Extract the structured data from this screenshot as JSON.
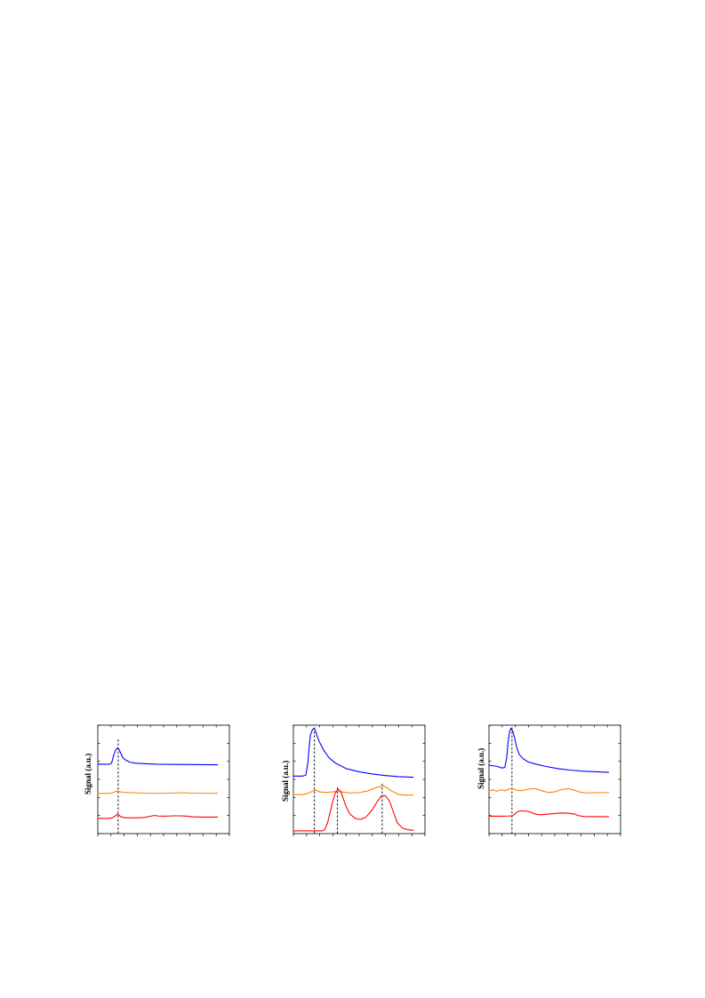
{
  "colors": {
    "blue": "#0000ff",
    "orange": "#ff8000",
    "red": "#ff0000",
    "axes": "#000000",
    "guide": "#000000"
  },
  "chart_data": [
    {
      "type": "line",
      "title": "",
      "xlabel": "",
      "ylabel": "Signal (a.u.)",
      "xlim": [
        0,
        10
      ],
      "ylim": [
        0,
        10
      ],
      "grid": false,
      "tick_labels_shown": false,
      "xtick_count": 10,
      "ytick_count": 6,
      "vlines": [
        {
          "x": 1.55,
          "y_top": 8.7
        }
      ],
      "series": [
        {
          "color": "blue",
          "x": [
            0,
            0.9,
            1.05,
            1.2,
            1.35,
            1.5,
            1.6,
            1.75,
            1.9,
            2.1,
            2.4,
            2.8,
            3.5,
            4.5,
            6,
            8,
            9.1
          ],
          "y": [
            6.4,
            6.4,
            6.5,
            7.2,
            7.7,
            7.9,
            7.8,
            7.4,
            7.0,
            6.8,
            6.6,
            6.5,
            6.45,
            6.4,
            6.38,
            6.36,
            6.35
          ]
        },
        {
          "color": "orange",
          "x": [
            0,
            0.8,
            1.0,
            1.3,
            1.5,
            1.7,
            2.0,
            2.5,
            3,
            4,
            5,
            6,
            6.5,
            7,
            8,
            9.1
          ],
          "y": [
            3.7,
            3.7,
            3.72,
            3.85,
            3.92,
            3.85,
            3.8,
            3.78,
            3.75,
            3.72,
            3.72,
            3.75,
            3.77,
            3.74,
            3.72,
            3.72
          ]
        },
        {
          "color": "red",
          "x": [
            0,
            0.8,
            1.1,
            1.3,
            1.5,
            1.6,
            1.75,
            1.9,
            2.2,
            2.8,
            3.5,
            4.0,
            4.3,
            4.6,
            5.0,
            5.4,
            5.8,
            6.3,
            6.8,
            7.2,
            7.8,
            8.5,
            9.1
          ],
          "y": [
            1.4,
            1.4,
            1.45,
            1.6,
            1.8,
            1.7,
            1.55,
            1.5,
            1.45,
            1.45,
            1.48,
            1.6,
            1.68,
            1.62,
            1.6,
            1.62,
            1.64,
            1.64,
            1.6,
            1.55,
            1.52,
            1.52,
            1.52
          ]
        }
      ]
    },
    {
      "type": "line",
      "title": "",
      "xlabel": "",
      "ylabel": "Signal (a.u.)",
      "xlim": [
        0,
        10
      ],
      "ylim": [
        0,
        10
      ],
      "grid": false,
      "tick_labels_shown": false,
      "xtick_count": 10,
      "ytick_count": 6,
      "vlines": [
        {
          "x": 1.6,
          "y_top": 9.8
        },
        {
          "x": 3.35,
          "y_top": 4.25
        },
        {
          "x": 6.75,
          "y_top": 4.6
        }
      ],
      "series": [
        {
          "color": "blue",
          "x": [
            0,
            0.7,
            0.95,
            1.1,
            1.2,
            1.3,
            1.45,
            1.6,
            1.7,
            1.8,
            2.0,
            2.3,
            2.7,
            3.2,
            4,
            5,
            6,
            7,
            8,
            9.1
          ],
          "y": [
            5.3,
            5.3,
            5.4,
            6.5,
            8.0,
            9.1,
            9.6,
            9.7,
            9.4,
            9.0,
            8.4,
            7.7,
            7.0,
            6.5,
            6.0,
            5.7,
            5.5,
            5.35,
            5.25,
            5.2
          ]
        },
        {
          "color": "orange",
          "x": [
            0,
            0.8,
            1.2,
            1.5,
            1.7,
            2.0,
            2.5,
            3.0,
            3.4,
            3.8,
            4.3,
            5.0,
            5.7,
            6.3,
            6.8,
            7.1,
            7.5,
            8.0,
            8.5,
            9.1
          ],
          "y": [
            3.6,
            3.6,
            3.75,
            3.95,
            4.0,
            3.85,
            3.8,
            3.85,
            3.9,
            3.82,
            3.75,
            3.78,
            3.95,
            4.25,
            4.4,
            4.25,
            3.9,
            3.6,
            3.55,
            3.55
          ]
        },
        {
          "color": "red",
          "x": [
            0,
            1.5,
            2.2,
            2.4,
            2.6,
            2.8,
            3.0,
            3.2,
            3.4,
            3.6,
            3.8,
            4.0,
            4.3,
            4.7,
            5.1,
            5.5,
            6.0,
            6.4,
            6.7,
            7.0,
            7.3,
            7.6,
            7.9,
            8.3,
            8.7,
            9.1
          ],
          "y": [
            0.25,
            0.25,
            0.25,
            0.4,
            1.0,
            2.0,
            3.0,
            3.8,
            4.1,
            3.9,
            3.2,
            2.5,
            1.8,
            1.4,
            1.3,
            1.5,
            2.2,
            3.0,
            3.5,
            3.5,
            3.0,
            2.0,
            1.0,
            0.5,
            0.35,
            0.3
          ]
        }
      ]
    },
    {
      "type": "line",
      "title": "",
      "xlabel": "",
      "ylabel": "Signal (a.u.)",
      "xlim": [
        0,
        10
      ],
      "ylim": [
        0,
        10
      ],
      "grid": false,
      "tick_labels_shown": false,
      "xtick_count": 10,
      "ytick_count": 6,
      "vlines": [
        {
          "x": 1.75,
          "y_top": 9.8
        }
      ],
      "series": [
        {
          "color": "blue",
          "x": [
            0,
            0.6,
            1.0,
            1.2,
            1.35,
            1.45,
            1.55,
            1.65,
            1.8,
            1.95,
            2.1,
            2.3,
            2.6,
            3.0,
            3.6,
            4.3,
            5.2,
            6.2,
            7.2,
            8.2,
            9.1
          ],
          "y": [
            6.3,
            6.2,
            6.05,
            6.1,
            7.0,
            8.4,
            9.3,
            9.7,
            9.5,
            8.8,
            8.0,
            7.3,
            6.9,
            6.6,
            6.4,
            6.2,
            6.0,
            5.85,
            5.75,
            5.7,
            5.65
          ]
        },
        {
          "color": "orange",
          "x": [
            0,
            0.3,
            0.6,
            0.9,
            1.2,
            1.5,
            1.8,
            2.1,
            2.5,
            3.0,
            3.5,
            4.0,
            4.5,
            5.0,
            5.5,
            6.0,
            6.5,
            7.0,
            7.5,
            8.2,
            9.1
          ],
          "y": [
            3.9,
            4.05,
            3.9,
            4.05,
            3.95,
            4.1,
            4.15,
            4.0,
            3.95,
            4.1,
            4.15,
            3.95,
            3.8,
            3.85,
            4.05,
            4.15,
            4.0,
            3.8,
            3.75,
            3.78,
            3.78
          ]
        },
        {
          "color": "red",
          "x": [
            0,
            1.0,
            1.5,
            1.8,
            2.0,
            2.2,
            2.5,
            3.0,
            3.4,
            3.7,
            4.0,
            4.5,
            5.0,
            5.5,
            6.0,
            6.5,
            6.8,
            7.2,
            8.0,
            9.1
          ],
          "y": [
            1.6,
            1.6,
            1.62,
            1.65,
            1.85,
            2.05,
            2.1,
            2.05,
            1.85,
            1.75,
            1.75,
            1.8,
            1.85,
            1.9,
            1.88,
            1.8,
            1.65,
            1.58,
            1.56,
            1.56
          ]
        }
      ]
    }
  ]
}
